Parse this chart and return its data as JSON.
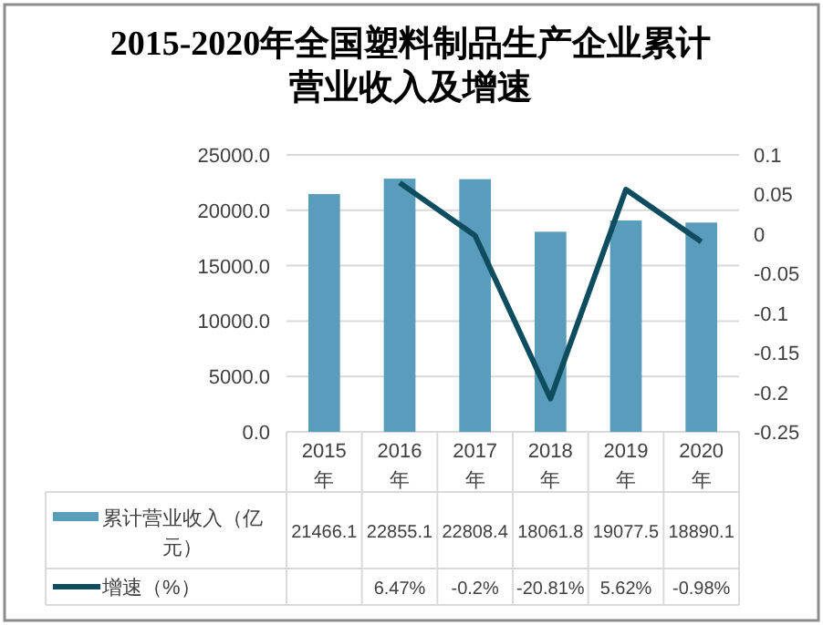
{
  "chart_data": {
    "type": "bar",
    "title": "2015-2020年全国塑料制品生产企业累计营业收入及增速",
    "categories": [
      "2015年",
      "2016年",
      "2017年",
      "2018年",
      "2019年",
      "2020年"
    ],
    "series": [
      {
        "name": "累计营业收入（亿元）",
        "color": "#5a9cbb",
        "values": [
          21466.1,
          22855.1,
          22808.4,
          18061.8,
          19077.5,
          18890.1
        ]
      },
      {
        "name": "增速（%）",
        "type": "line",
        "axis": "y2",
        "color": "#0e4d5f",
        "values": [
          null,
          0.0647,
          -0.002,
          -0.2081,
          0.0562,
          -0.0098
        ],
        "value_labels": [
          null,
          "6.47%",
          "-0.2%",
          "-20.81%",
          "5.62%",
          "-0.98%"
        ]
      }
    ],
    "data_labels": true,
    "ylim": [
      0,
      25000
    ],
    "yticks": [
      {
        "value": 0,
        "label": "0.0"
      },
      {
        "value": 5000,
        "label": "5000.0"
      },
      {
        "value": 10000,
        "label": "10000.0"
      },
      {
        "value": 15000,
        "label": "15000.0"
      },
      {
        "value": 20000,
        "label": "20000.0"
      },
      {
        "value": 25000,
        "label": "25000.0"
      }
    ],
    "y2lim": [
      -0.25,
      0.1
    ],
    "y2ticks": [
      -0.25,
      -0.2,
      -0.15,
      -0.1,
      -0.05,
      0,
      0.05,
      0.1
    ],
    "grid": "y",
    "legend": "bottom",
    "marker": "none"
  }
}
